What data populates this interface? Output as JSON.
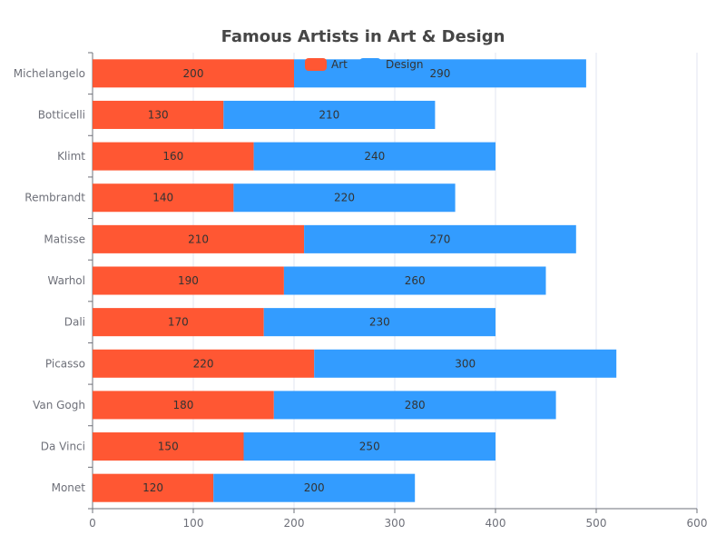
{
  "chart_data": {
    "type": "bar",
    "orientation": "horizontal",
    "stacked": true,
    "title": "Famous Artists in Art & Design",
    "categories": [
      "Monet",
      "Da Vinci",
      "Van Gogh",
      "Picasso",
      "Dali",
      "Warhol",
      "Matisse",
      "Rembrandt",
      "Klimt",
      "Botticelli",
      "Michelangelo"
    ],
    "series": [
      {
        "name": "Art",
        "color": "#ff5733",
        "values": [
          120,
          150,
          180,
          220,
          170,
          190,
          210,
          140,
          160,
          130,
          200
        ]
      },
      {
        "name": "Design",
        "color": "#339cff",
        "values": [
          200,
          250,
          280,
          300,
          230,
          260,
          270,
          220,
          240,
          210,
          290
        ]
      }
    ],
    "x_ticks": [
      0,
      100,
      200,
      300,
      400,
      500,
      600
    ],
    "xlim": [
      0,
      600
    ],
    "grid": true,
    "legend_position": "top-center",
    "xlabel": "",
    "ylabel": ""
  }
}
